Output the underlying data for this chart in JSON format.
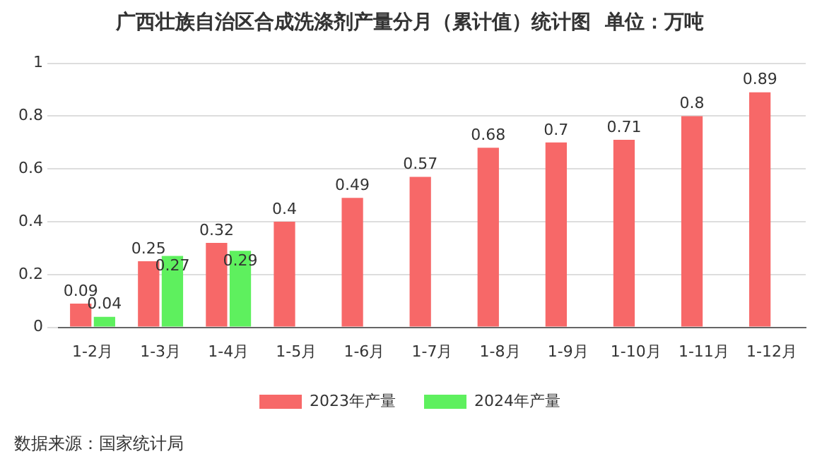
{
  "chart_data": {
    "type": "bar",
    "title": "广西壮族自治区合成洗涤剂产量分月（累计值）统计图  单位：万吨",
    "categories": [
      "1-2月",
      "1-3月",
      "1-4月",
      "1-5月",
      "1-6月",
      "1-7月",
      "1-8月",
      "1-9月",
      "1-10月",
      "1-11月",
      "1-12月"
    ],
    "series": [
      {
        "name": "2023年产量",
        "color": "#f76868",
        "values": [
          0.09,
          0.25,
          0.32,
          0.4,
          0.49,
          0.57,
          0.68,
          0.7,
          0.71,
          0.8,
          0.89
        ]
      },
      {
        "name": "2024年产量",
        "color": "#5ef05e",
        "values": [
          0.04,
          0.27,
          0.29,
          null,
          null,
          null,
          null,
          null,
          null,
          null,
          null
        ]
      }
    ],
    "ylim": [
      0,
      1
    ],
    "yticks": [
      0,
      0.2,
      0.4,
      0.6,
      0.8,
      1
    ],
    "grid": "y",
    "legend": "bottom",
    "data_labels": true,
    "annotations": [
      "数据来源：国家统计局"
    ]
  }
}
